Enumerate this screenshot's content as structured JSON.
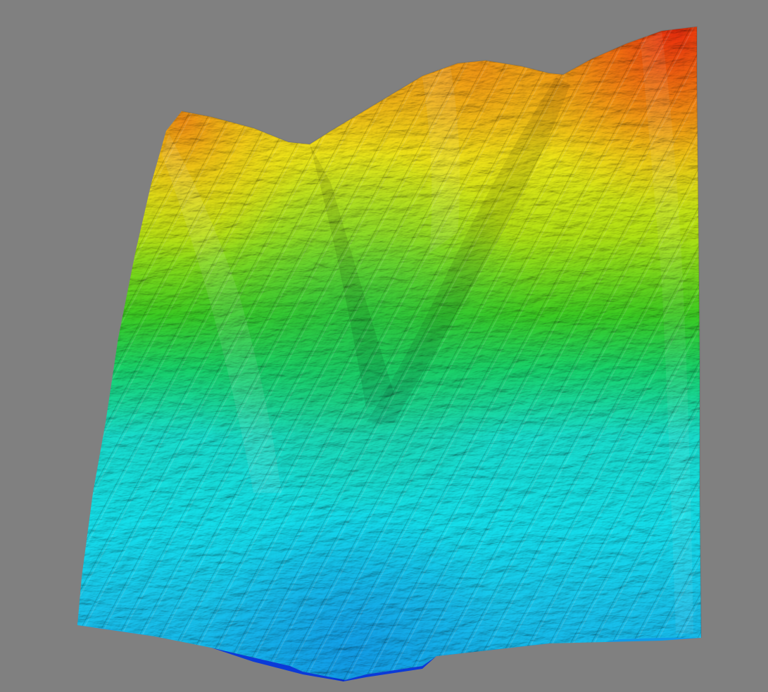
{
  "scene": {
    "type": "3d-terrain-heightmap",
    "background_color": "#808080",
    "colormap": [
      "#0a1fd6",
      "#10a8f0",
      "#16e0e6",
      "#1ee070",
      "#39d621",
      "#b4ea12",
      "#f4f018",
      "#f8b414",
      "#f46a10",
      "#e8200c"
    ],
    "features": [
      "left-ridge",
      "central-valley",
      "center-ridge",
      "right-valley",
      "right-ridge-peak"
    ]
  }
}
